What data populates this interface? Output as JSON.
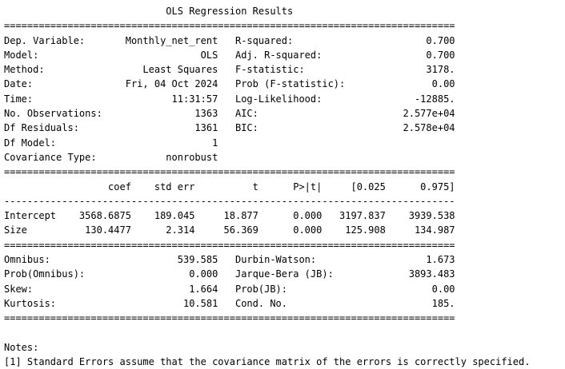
{
  "title": "OLS Regression Results",
  "sep_double": "==============================================================================",
  "sep_single": "------------------------------------------------------------------------------",
  "model_info": [
    {
      "l_label": "Dep. Variable:",
      "l_value": "Monthly_net_rent",
      "r_label": "R-squared:",
      "r_value": "0.700"
    },
    {
      "l_label": "Model:",
      "l_value": "OLS",
      "r_label": "Adj. R-squared:",
      "r_value": "0.700"
    },
    {
      "l_label": "Method:",
      "l_value": "Least Squares",
      "r_label": "F-statistic:",
      "r_value": "3178."
    },
    {
      "l_label": "Date:",
      "l_value": "Fri, 04 Oct 2024",
      "r_label": "Prob (F-statistic):",
      "r_value": "0.00"
    },
    {
      "l_label": "Time:",
      "l_value": "11:31:57",
      "r_label": "Log-Likelihood:",
      "r_value": "-12885."
    },
    {
      "l_label": "No. Observations:",
      "l_value": "1363",
      "r_label": "AIC:",
      "r_value": "2.577e+04"
    },
    {
      "l_label": "Df Residuals:",
      "l_value": "1361",
      "r_label": "BIC:",
      "r_value": "2.578e+04"
    },
    {
      "l_label": "Df Model:",
      "l_value": "1",
      "r_label": "",
      "r_value": ""
    },
    {
      "l_label": "Covariance Type:",
      "l_value": "nonrobust",
      "r_label": "",
      "r_value": ""
    }
  ],
  "coef_table": {
    "headers": [
      "",
      "coef",
      "std err",
      "t",
      "P>|t|",
      "[0.025",
      "0.975]"
    ],
    "rows": [
      [
        "Intercept",
        "3568.6875",
        "189.045",
        "18.877",
        "0.000",
        "3197.837",
        "3939.538"
      ],
      [
        "Size",
        "130.4477",
        "2.314",
        "56.369",
        "0.000",
        "125.908",
        "134.987"
      ]
    ]
  },
  "diagnostics": [
    {
      "l_label": "Omnibus:",
      "l_value": "539.585",
      "r_label": "Durbin-Watson:",
      "r_value": "1.673"
    },
    {
      "l_label": "Prob(Omnibus):",
      "l_value": "0.000",
      "r_label": "Jarque-Bera (JB):",
      "r_value": "3893.483"
    },
    {
      "l_label": "Skew:",
      "l_value": "1.664",
      "r_label": "Prob(JB):",
      "r_value": "0.00"
    },
    {
      "l_label": "Kurtosis:",
      "l_value": "10.581",
      "r_label": "Cond. No.",
      "r_value": "185."
    }
  ],
  "notes_heading": "Notes:",
  "notes": [
    "[1] Standard Errors assume that the covariance matrix of the errors is correctly specified."
  ]
}
